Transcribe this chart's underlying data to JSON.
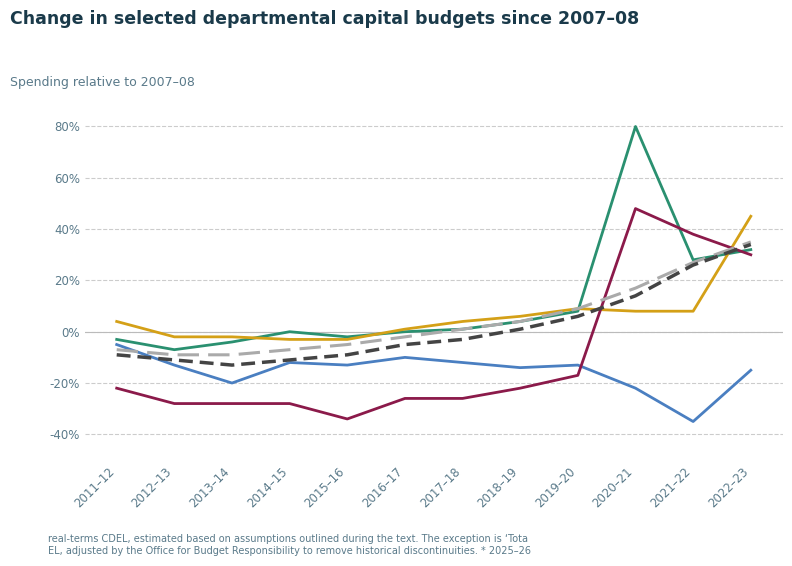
{
  "title": "Change in selected departmental capital budgets since 2007–08",
  "ylabel_text": "ing relative to 2007–08",
  "years": [
    "2011–12",
    "2012–13",
    "2013–14",
    "2014–15",
    "2015–16",
    "2016–17",
    "2017–18",
    "2018–19",
    "2019–20",
    "2020–21",
    "2021–22",
    "2022–23"
  ],
  "x": [
    0,
    1,
    2,
    3,
    4,
    5,
    6,
    7,
    8,
    9,
    10,
    11
  ],
  "series": {
    "blue": {
      "color": "#4a7fc1",
      "linestyle": "solid",
      "linewidth": 2.0,
      "values": [
        -0.05,
        -0.13,
        -0.2,
        -0.12,
        -0.13,
        -0.1,
        -0.12,
        -0.14,
        -0.13,
        -0.22,
        -0.35,
        -0.15
      ]
    },
    "green": {
      "color": "#2a9070",
      "linestyle": "solid",
      "linewidth": 2.0,
      "values": [
        -0.03,
        -0.07,
        -0.04,
        0.0,
        -0.02,
        0.0,
        0.01,
        0.04,
        0.08,
        0.8,
        0.28,
        0.32
      ]
    },
    "gold": {
      "color": "#d4a017",
      "linestyle": "solid",
      "linewidth": 2.0,
      "values": [
        0.04,
        -0.02,
        -0.02,
        -0.03,
        -0.03,
        0.01,
        0.04,
        0.06,
        0.09,
        0.08,
        0.08,
        0.45
      ]
    },
    "maroon": {
      "color": "#8b1a4a",
      "linestyle": "solid",
      "linewidth": 2.0,
      "values": [
        -0.22,
        -0.28,
        -0.28,
        -0.28,
        -0.34,
        -0.26,
        -0.26,
        -0.22,
        -0.17,
        0.48,
        0.38,
        0.3
      ]
    },
    "gray_dashed": {
      "color": "#aaaaaa",
      "linestyle": "dashed",
      "linewidth": 2.2,
      "values": [
        -0.07,
        -0.09,
        -0.09,
        -0.07,
        -0.05,
        -0.02,
        0.01,
        0.04,
        0.09,
        0.17,
        0.27,
        0.35
      ]
    },
    "black_dotted": {
      "color": "#444444",
      "linestyle": "dotted",
      "linewidth": 2.5,
      "values": [
        -0.09,
        -0.11,
        -0.13,
        -0.11,
        -0.09,
        -0.05,
        -0.03,
        0.01,
        0.06,
        0.14,
        0.26,
        0.34
      ]
    }
  },
  "ylim": [
    -0.5,
    0.95
  ],
  "yticks": [
    -0.4,
    -0.2,
    0.0,
    0.2,
    0.4,
    0.6,
    0.8
  ],
  "ytick_labels": [
    "-40%",
    "-20%",
    "0%",
    "20%",
    "40%",
    "60%",
    "80%"
  ],
  "background_color": "#ffffff",
  "grid_color": "#cccccc",
  "title_color": "#1a3a4a",
  "label_color": "#5a7a8a",
  "note_text": "real-terms CDEL, estimated based on assumptions outlined during the text. The exception is ‘Tota\nEL, adjusted by the Office for Budget Responsibility to remove historical discontinuities. * 2025–26"
}
